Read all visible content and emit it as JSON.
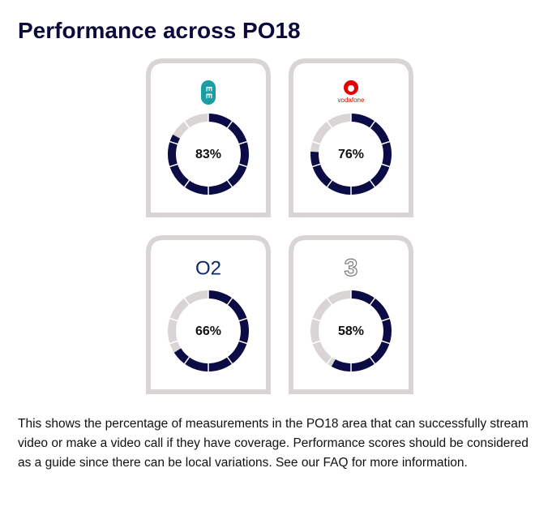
{
  "title": "Performance across PO18",
  "cards": [
    {
      "logo": "EE",
      "value": 83,
      "value_label": "83%"
    },
    {
      "logo": "vodafone",
      "value": 76,
      "value_label": "76%"
    },
    {
      "logo": "O2",
      "value": 66,
      "value_label": "66%"
    },
    {
      "logo": "3",
      "value": 58,
      "value_label": "58%"
    }
  ],
  "description": "This shows the percentage of measurements in the PO18 area that can successfully stream video or make a video call if they have coverage. Performance scores should be considered as a guide since there can be local variations. See our FAQ for more information."
}
